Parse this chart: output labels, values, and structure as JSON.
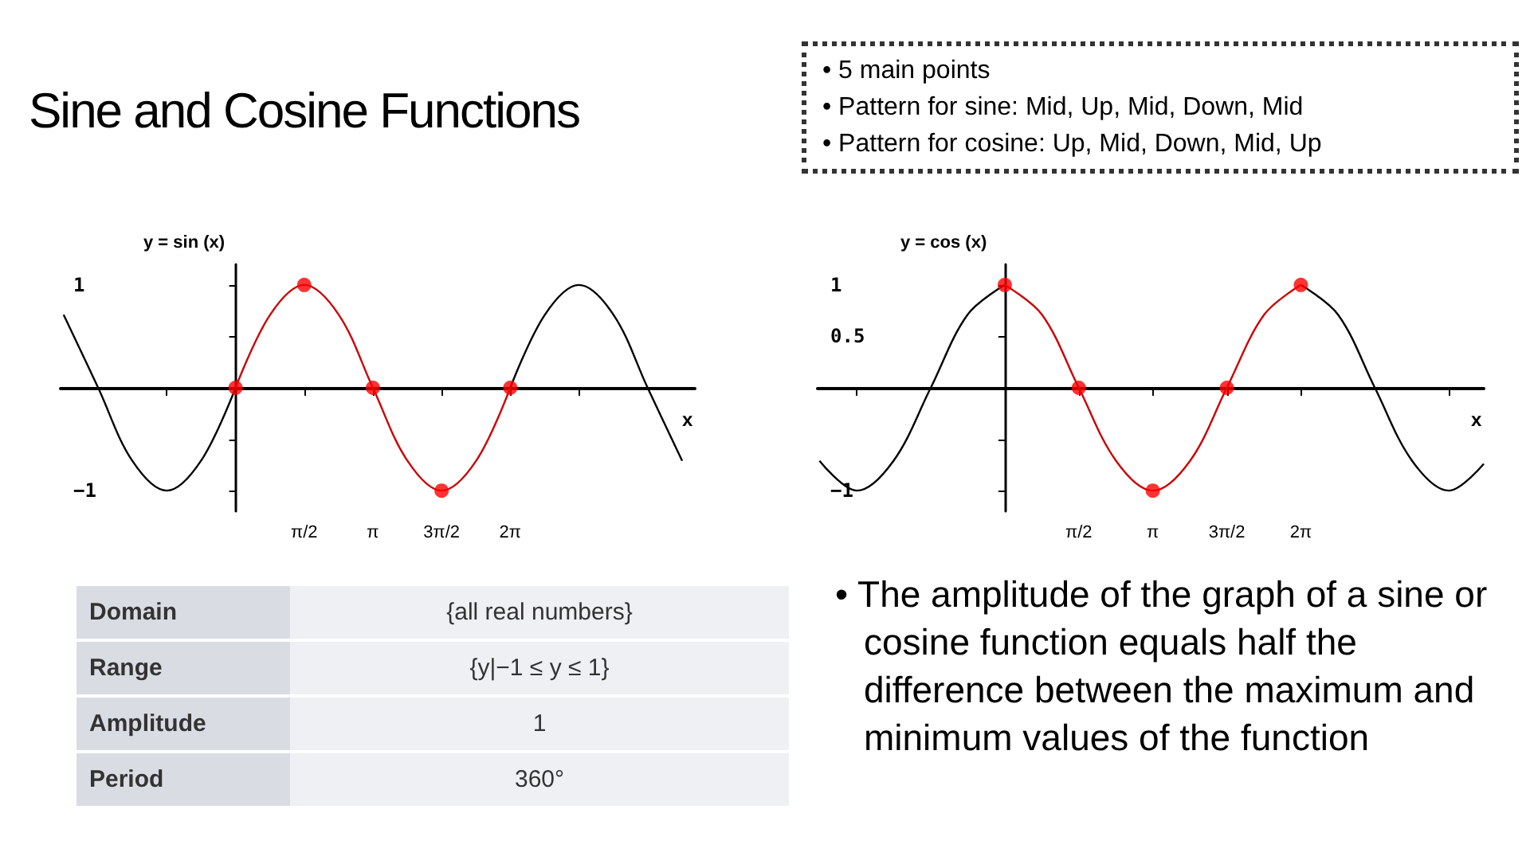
{
  "chart_data": [
    {
      "type": "other",
      "title": "Sine and Cosine Functions",
      "annotations": [
        "• 5 main points",
        "• Pattern for sine: Mid, Up, Mid, Down, Mid",
        "• Pattern for cosine: Up, Mid, Down, Mid, Up"
      ]
    },
    {
      "type": "line",
      "title": "y = sin (x)",
      "xlabel": "x",
      "xlim": [
        -4,
        10.5
      ],
      "ylim": [
        -1.2,
        1.2
      ],
      "grid": false,
      "xticks": [
        {
          "value": -1.57,
          "label": null
        },
        {
          "value": 1.57,
          "label": "π/2"
        },
        {
          "value": 3.14,
          "label": "π"
        },
        {
          "value": 4.71,
          "label": "3π/2"
        },
        {
          "value": 6.28,
          "label": "2π"
        },
        {
          "value": 7.85,
          "label": null
        }
      ],
      "yticks": [
        1,
        {
          "value": 0.5,
          "label": null
        },
        {
          "value": -0.5,
          "label": null
        },
        {
          "value": -1,
          "label": "−1"
        }
      ],
      "series": [
        {
          "color": "#000000",
          "x": [
            -3.93,
            -3.14,
            -2.36,
            -1.57,
            -0.79,
            0
          ],
          "values": [
            0.71,
            0,
            -0.71,
            -1,
            -0.71,
            0
          ]
        },
        {
          "color": "#000000",
          "x": [
            6.28,
            7.07,
            7.85,
            8.64,
            9.42,
            10.21
          ],
          "values": [
            0,
            0.71,
            1,
            0.71,
            0,
            -0.71
          ]
        },
        {
          "color": "#cc0000",
          "x": [
            0,
            0.79,
            1.57,
            2.36,
            3.14,
            3.93,
            4.71,
            5.5,
            6.28
          ],
          "values": [
            0,
            0.71,
            1,
            0.71,
            0,
            -0.71,
            -1,
            -0.71,
            0
          ]
        },
        {
          "type": "scatter",
          "marker": "circle",
          "color": "#ff0000",
          "x": [
            0,
            1.57,
            3.14,
            4.71,
            6.28
          ],
          "values": [
            0,
            1,
            0,
            -1,
            0
          ]
        }
      ]
    },
    {
      "type": "line",
      "title": "y = cos (x)",
      "xlabel": "x",
      "xlim": [
        -3.97,
        10.16
      ],
      "ylim": [
        -1.2,
        1.2
      ],
      "grid": false,
      "xticks": [
        {
          "value": -3.14,
          "label": null
        },
        {
          "value": 1.57,
          "label": "π/2"
        },
        {
          "value": 3.14,
          "label": "π"
        },
        {
          "value": 4.71,
          "label": "3π/2"
        },
        {
          "value": 6.28,
          "label": "2π"
        },
        {
          "value": 9.42,
          "label": null
        }
      ],
      "yticks": [
        1,
        {
          "value": 0.5,
          "label": "0.5"
        },
        {
          "value": -0.5,
          "label": null
        },
        {
          "value": -1,
          "label": "−1"
        }
      ],
      "series": [
        {
          "color": "#000000",
          "x": [
            -3.93,
            -3.14,
            -2.36,
            -1.57,
            -0.79,
            0
          ],
          "values": [
            -0.71,
            -1,
            -0.71,
            0,
            0.71,
            1
          ]
        },
        {
          "color": "#000000",
          "x": [
            6.28,
            7.07,
            7.85,
            8.64,
            9.42,
            10.16
          ],
          "values": [
            1,
            0.71,
            0,
            -0.71,
            -1,
            -0.74
          ]
        },
        {
          "color": "#cc0000",
          "x": [
            0,
            0.79,
            1.57,
            2.36,
            3.14,
            3.93,
            4.71,
            5.5,
            6.28
          ],
          "values": [
            1,
            0.71,
            0,
            -0.71,
            -1,
            -0.71,
            0,
            0.71,
            1
          ]
        },
        {
          "type": "scatter",
          "marker": "circle",
          "color": "#ff0000",
          "x": [
            0,
            1.57,
            3.14,
            4.71,
            6.28
          ],
          "values": [
            1,
            0,
            -1,
            0,
            1
          ]
        }
      ]
    },
    {
      "type": "other",
      "annotations": [
        "Domain",
        "{all real numbers}",
        "Range",
        "{y|−1 ≤ y ≤ 1}",
        "Amplitude",
        "1",
        "Period",
        "360°"
      ]
    },
    {
      "type": "other",
      "annotations": [
        "• The amplitude of the graph of a sine or cosine function equals half the difference between the maximum and minimum values of the function"
      ]
    }
  ]
}
